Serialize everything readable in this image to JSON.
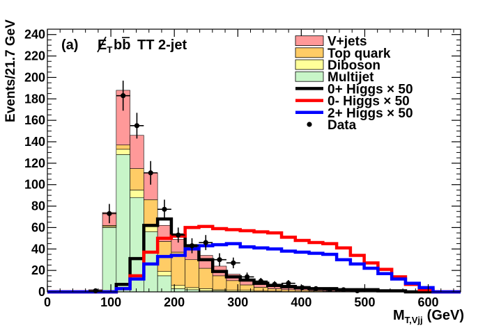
{
  "chart_data": {
    "type": "bar",
    "stacked": true,
    "panel_label": "(a)",
    "title_parts": {
      "met": "E",
      "met_sub": "T",
      "bb": "bb",
      "rest": "TT 2-jet"
    },
    "xlabel": {
      "main": "M",
      "sub": "T,Vjj",
      "unit": "(GeV)"
    },
    "ylabel": "Events/21.7 GeV",
    "xlim": [
      0,
      651
    ],
    "ylim": [
      0,
      245
    ],
    "xticks": [
      0,
      100,
      200,
      300,
      400,
      500,
      600
    ],
    "yticks": [
      0,
      20,
      40,
      60,
      80,
      100,
      120,
      140,
      160,
      180,
      200,
      220,
      240
    ],
    "bin_width": 21.7,
    "bin_edges": [
      0,
      21.7,
      43.4,
      65.1,
      86.8,
      108.5,
      130.2,
      151.9,
      173.6,
      195.3,
      217.0,
      238.7,
      260.4,
      282.1,
      303.8,
      325.5,
      347.2,
      368.9,
      390.6,
      412.3,
      434.0,
      455.7,
      477.4,
      499.1,
      520.8,
      542.5,
      564.2,
      585.9,
      607.6,
      629.3,
      651.0
    ],
    "stack": [
      {
        "name": "Multijet",
        "color": "#c8f5c8",
        "values": [
          0,
          0,
          0,
          0,
          60,
          128,
          88,
          56,
          15,
          3,
          2,
          1,
          1,
          0.5,
          0.5,
          0.3,
          0.2,
          0,
          0,
          0,
          0,
          0,
          0,
          0,
          0,
          0,
          0,
          0,
          0,
          0
        ]
      },
      {
        "name": "Diboson",
        "color": "#ffff99",
        "values": [
          0,
          0,
          0,
          0,
          1,
          5,
          7,
          6,
          4,
          3,
          2,
          2,
          1,
          1,
          1,
          0.5,
          0.5,
          0.3,
          0.3,
          0.2,
          0.1,
          0,
          0,
          0,
          0,
          0,
          0,
          0,
          0,
          0
        ]
      },
      {
        "name": "Top quark",
        "color": "#ffcc66",
        "values": [
          0,
          0,
          0,
          0,
          1,
          4,
          20,
          24,
          28,
          31,
          26,
          19,
          13,
          9,
          5,
          3.5,
          2.2,
          1.7,
          1.2,
          0.8,
          0.5,
          0.3,
          0.2,
          0.1,
          0,
          0,
          0,
          0,
          0,
          0
        ]
      },
      {
        "name": "V+jets",
        "color": "#ff9999",
        "values": [
          0,
          0,
          0,
          2,
          12,
          51,
          31,
          25,
          15,
          12,
          10,
          12,
          9,
          6,
          4,
          2.5,
          1.8,
          1.5,
          1.2,
          1,
          0.8,
          0.5,
          0.5,
          0.3,
          0.2,
          0.1,
          0,
          0,
          0,
          0
        ]
      }
    ],
    "signals": [
      {
        "name": "0+ Higgs",
        "scale": "× 50",
        "color": "#000000",
        "values": [
          0,
          0,
          0,
          0,
          0,
          7,
          31,
          62,
          68,
          53,
          43,
          30,
          19,
          14,
          11,
          8,
          6,
          5,
          4,
          3,
          3,
          2,
          2,
          2,
          1,
          1,
          0,
          0,
          0,
          0
        ]
      },
      {
        "name": "0- Higgs",
        "scale": "× 50",
        "color": "#ff0000",
        "values": [
          0,
          0,
          0,
          0,
          0,
          3,
          15,
          37,
          50,
          52,
          60,
          61,
          59,
          58,
          57,
          56,
          55,
          51,
          48,
          46,
          45,
          41,
          34,
          27,
          21,
          14,
          7,
          2,
          0,
          0
        ]
      },
      {
        "name": "2+ Higgs",
        "scale": "× 50",
        "color": "#0000ff",
        "values": [
          0,
          0,
          0,
          0,
          0,
          3,
          12,
          26,
          33,
          34,
          40,
          43,
          44,
          45,
          42,
          41,
          40,
          38,
          37,
          36,
          35,
          30,
          26,
          22,
          17,
          12,
          8,
          4,
          0,
          0
        ]
      }
    ],
    "data": {
      "name": "Data",
      "points": [
        {
          "x": 75.9,
          "y": 1,
          "err": 1
        },
        {
          "x": 97.6,
          "y": 73,
          "err": 9
        },
        {
          "x": 119.3,
          "y": 183,
          "err": 14
        },
        {
          "x": 141.0,
          "y": 155,
          "err": 12
        },
        {
          "x": 162.7,
          "y": 111,
          "err": 11
        },
        {
          "x": 184.4,
          "y": 77,
          "err": 9
        },
        {
          "x": 206.1,
          "y": 53,
          "err": 7
        },
        {
          "x": 227.8,
          "y": 43,
          "err": 7
        },
        {
          "x": 249.5,
          "y": 46,
          "err": 7
        },
        {
          "x": 271.2,
          "y": 30,
          "err": 6
        },
        {
          "x": 292.9,
          "y": 27,
          "err": 5
        },
        {
          "x": 314.6,
          "y": 14,
          "err": 4
        },
        {
          "x": 336.3,
          "y": 10,
          "err": 3
        },
        {
          "x": 358.0,
          "y": 7,
          "err": 3
        },
        {
          "x": 379.7,
          "y": 8,
          "err": 3
        },
        {
          "x": 401.4,
          "y": 4,
          "err": 2
        },
        {
          "x": 423.1,
          "y": 3,
          "err": 2
        },
        {
          "x": 444.8,
          "y": 2,
          "err": 1
        },
        {
          "x": 466.5,
          "y": 2,
          "err": 1
        },
        {
          "x": 488.2,
          "y": 1,
          "err": 1
        }
      ]
    },
    "legend": {
      "placement": "top-right",
      "entries": [
        {
          "label": "V+jets",
          "kind": "fill",
          "color": "#ff9999"
        },
        {
          "label": "Top quark",
          "kind": "fill",
          "color": "#ffcc66"
        },
        {
          "label": "Diboson",
          "kind": "fill",
          "color": "#ffff99"
        },
        {
          "label": "Multijet",
          "kind": "fill",
          "color": "#c8f5c8"
        },
        {
          "label": "0+ Higgs",
          "scale": "× 50",
          "kind": "line",
          "color": "#000000"
        },
        {
          "label": "0- Higgs",
          "scale": "× 50",
          "kind": "line",
          "color": "#ff0000"
        },
        {
          "label": "2+ Higgs",
          "scale": "× 50",
          "kind": "line",
          "color": "#0000ff"
        },
        {
          "label": "Data",
          "kind": "marker",
          "color": "#000000"
        }
      ]
    }
  }
}
